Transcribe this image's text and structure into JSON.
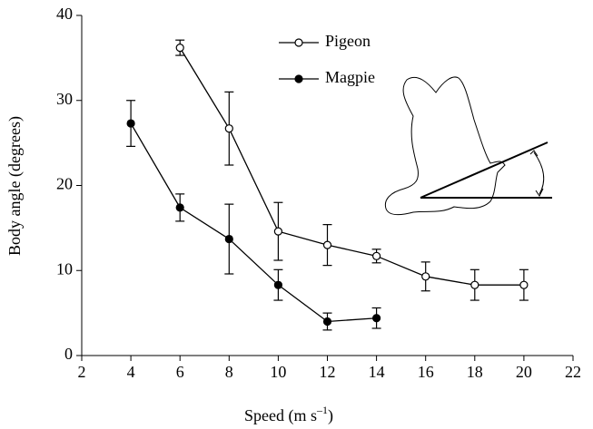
{
  "chart_data": {
    "type": "line",
    "xlabel": {
      "base": "Speed (m s",
      "superscript": "–1",
      "end": ")"
    },
    "ylabel": "Body angle (degrees)",
    "xlim": [
      2,
      22
    ],
    "xticks": [
      2,
      4,
      6,
      8,
      10,
      12,
      14,
      16,
      18,
      20,
      22
    ],
    "ylim": [
      0,
      40
    ],
    "yticks": [
      0,
      10,
      20,
      30,
      40
    ],
    "legend": "top-center",
    "series": [
      {
        "name": "Pigeon",
        "color": "#000000",
        "marker": "open",
        "x": [
          6,
          8,
          10,
          12,
          14,
          16,
          18,
          20
        ],
        "values": [
          36.2,
          26.7,
          14.6,
          13.0,
          11.7,
          9.3,
          8.3,
          8.3
        ],
        "errors": [
          0.9,
          4.3,
          3.4,
          2.4,
          0.8,
          1.7,
          1.8,
          1.8
        ]
      },
      {
        "name": "Magpie",
        "color": "#000000",
        "marker": "filled",
        "x": [
          4,
          6,
          8,
          10,
          12,
          14
        ],
        "values": [
          27.3,
          17.4,
          13.7,
          8.3,
          4.0,
          4.4
        ],
        "errors": [
          2.7,
          1.6,
          4.1,
          1.8,
          1.0,
          1.2
        ]
      }
    ]
  }
}
